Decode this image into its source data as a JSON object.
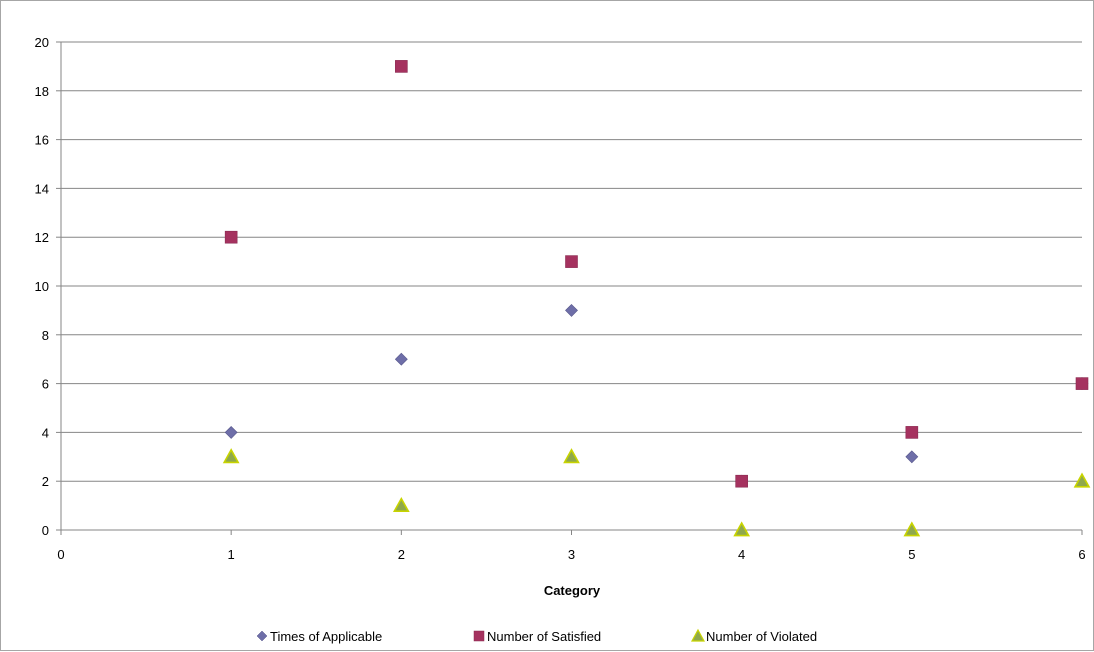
{
  "chart_data": {
    "type": "scatter",
    "title": "",
    "xlabel": "Category",
    "ylabel": "",
    "xlim": [
      0,
      6
    ],
    "ylim": [
      0,
      20
    ],
    "xticks": [
      0,
      1,
      2,
      3,
      4,
      5,
      6
    ],
    "yticks": [
      0,
      2,
      4,
      6,
      8,
      10,
      12,
      14,
      16,
      18,
      20
    ],
    "grid": "horizontal",
    "legend_position": "bottom",
    "x": [
      1,
      2,
      3,
      4,
      5,
      6
    ],
    "series": [
      {
        "name": "Times of Applicable",
        "marker": "diamond",
        "color": "#6e6ea8",
        "values": [
          4,
          7,
          9,
          2,
          3,
          6
        ]
      },
      {
        "name": "Number of Satisfied",
        "marker": "square",
        "color": "#a5325f",
        "values": [
          12,
          19,
          11,
          2,
          4,
          6
        ]
      },
      {
        "name": "Number of Violated",
        "marker": "triangle",
        "color": "#8fa84c",
        "values": [
          3,
          1,
          3,
          0,
          0,
          2
        ]
      }
    ]
  }
}
